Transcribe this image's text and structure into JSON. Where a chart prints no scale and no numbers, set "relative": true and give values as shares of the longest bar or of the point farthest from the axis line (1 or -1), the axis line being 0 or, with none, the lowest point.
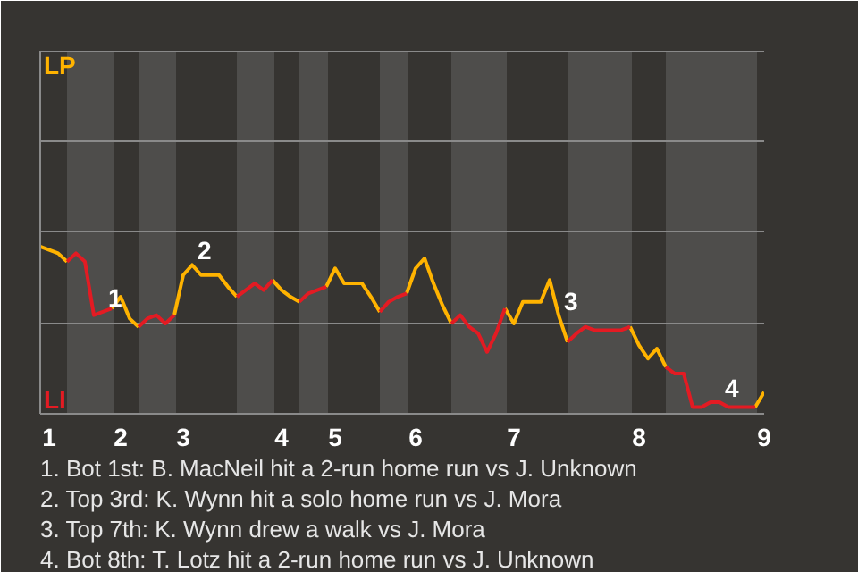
{
  "chart_data": {
    "type": "line",
    "relative": true,
    "categories": [
      null,
      "1",
      null,
      null,
      null,
      null,
      null,
      null,
      null,
      "2",
      null,
      null,
      null,
      null,
      null,
      null,
      "3",
      null,
      null,
      null,
      null,
      null,
      null,
      null,
      null,
      null,
      null,
      "4",
      null,
      null,
      null,
      null,
      null,
      "5",
      null,
      null,
      null,
      null,
      null,
      null,
      null,
      null,
      "6",
      null,
      null,
      null,
      null,
      null,
      null,
      null,
      null,
      null,
      null,
      "7",
      null,
      null,
      null,
      null,
      null,
      null,
      null,
      null,
      null,
      null,
      null,
      null,
      null,
      "8",
      null,
      null,
      null,
      null,
      null,
      null,
      null,
      null,
      null,
      null,
      null,
      null,
      null,
      "9"
    ],
    "series": [
      {
        "color": "#ffb300",
        "values": [
          1,
          0.98,
          0.96,
          0.91,
          null,
          null,
          null,
          null,
          0.63,
          0.7,
          0.57,
          0.52,
          null,
          null,
          null,
          0.59,
          0.83,
          0.89,
          0.83,
          0.83,
          0.83,
          0.76,
          0.7,
          null,
          null,
          null,
          0.8,
          0.74,
          0.7,
          0.67,
          null,
          null,
          0.76,
          0.87,
          0.78,
          0.78,
          0.78,
          0.7,
          0.61,
          null,
          null,
          0.72,
          0.87,
          0.93,
          0.78,
          0.65,
          0.54,
          null,
          null,
          null,
          null,
          null,
          0.63,
          0.54,
          0.67,
          0.67,
          0.67,
          0.8,
          0.59,
          0.43,
          null,
          null,
          null,
          null,
          null,
          null,
          0.52,
          0.41,
          0.33,
          0.39,
          0.28,
          null,
          null,
          null,
          null,
          null,
          null,
          null,
          null,
          null,
          0.04,
          0.13
        ]
      },
      {
        "color": "#e31b23",
        "values": [
          null,
          null,
          null,
          0.91,
          0.96,
          0.91,
          0.59,
          0.61,
          0.63,
          null,
          null,
          0.52,
          0.57,
          0.59,
          0.54,
          0.59,
          null,
          null,
          null,
          null,
          null,
          null,
          0.7,
          0.74,
          0.78,
          0.74,
          0.8,
          null,
          null,
          0.67,
          0.72,
          0.74,
          0.76,
          null,
          null,
          null,
          null,
          null,
          0.61,
          0.67,
          0.7,
          0.72,
          null,
          null,
          null,
          null,
          0.54,
          0.59,
          0.52,
          0.48,
          0.37,
          0.48,
          0.63,
          null,
          null,
          null,
          null,
          null,
          null,
          0.43,
          0.48,
          0.52,
          0.5,
          0.5,
          0.5,
          0.5,
          0.52,
          null,
          null,
          null,
          0.28,
          0.24,
          0.24,
          0.04,
          0.04,
          0.07,
          0.07,
          0.04,
          0.04,
          0.04,
          0.04,
          null
        ]
      }
    ],
    "ref_lines": [
      {
        "axis": "y",
        "value": 0.54,
        "color": "#8a8a8a"
      },
      {
        "axis": "y",
        "value": 1.09,
        "color": "#8a8a8a"
      },
      {
        "axis": "y",
        "value": 1.63,
        "color": "#8a8a8a"
      },
      {
        "axis": "y",
        "value": 2.17,
        "color": "#8a8a8a"
      }
    ],
    "annotations": [
      "LP",
      "LI",
      {
        "text": "1",
        "y": 0.61
      },
      {
        "text": "2",
        "y": 0.89
      },
      {
        "text": "3",
        "y": 0.59
      },
      {
        "text": "4",
        "y": 0.07
      },
      "1. Bot 1st: B. MacNeil hit a 2-run home run vs J. Unknown",
      "2. Top 3rd: K. Wynn hit a solo home run vs J. Mora",
      "3. Top 7th: K. Wynn drew a walk vs J. Mora",
      "4. Bot 8th: T. Lotz hit a 2-run home run vs J. Unknown"
    ]
  }
}
